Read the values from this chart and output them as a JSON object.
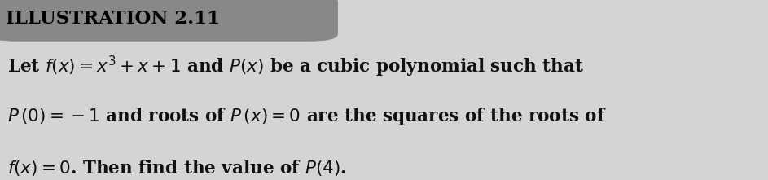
{
  "title": "ILLUSTRATION 2.11",
  "title_bg_color": "#888888",
  "title_text_color": "#000000",
  "body_bg_color": "#d4d4d4",
  "line1": "Let $f(x) = x^3 + x + 1$ and $P(x)$ be a cubic polynomial such that",
  "line2": "$P\\,(0) = -1$ and roots of $P\\,(x) = 0$ are the squares of the roots of",
  "line3": "$f(x) = 0$. Then find the value of $P(4)$.",
  "font_size": 15.5,
  "title_font_size": 16.5
}
